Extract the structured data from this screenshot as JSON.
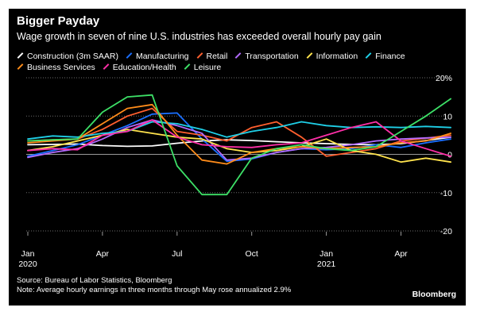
{
  "title": "Bigger Payday",
  "subtitle": "Wage growth in seven of nine U.S. industries has exceeded overall hourly pay gain",
  "source": "Source: Bureau of Labor Statistics, Bloomberg",
  "note": "Note: Average hourly earnings in three months through May rose annualized 2.9%",
  "brand": "Bloomberg",
  "chart_data": {
    "type": "line",
    "x": [
      "2020-01",
      "2020-02",
      "2020-03",
      "2020-04",
      "2020-05",
      "2020-06",
      "2020-07",
      "2020-08",
      "2020-09",
      "2020-10",
      "2020-11",
      "2020-12",
      "2021-01",
      "2021-02",
      "2021-03",
      "2021-04",
      "2021-05",
      "2021-06"
    ],
    "x_tick_labels": [
      {
        "x": "2020-01",
        "label": "Jan",
        "sublabel": "2020"
      },
      {
        "x": "2020-04",
        "label": "Apr",
        "sublabel": ""
      },
      {
        "x": "2020-07",
        "label": "Jul",
        "sublabel": ""
      },
      {
        "x": "2020-10",
        "label": "Oct",
        "sublabel": ""
      },
      {
        "x": "2021-01",
        "label": "Jan",
        "sublabel": "2021"
      },
      {
        "x": "2021-04",
        "label": "Apr",
        "sublabel": ""
      }
    ],
    "y_ticks": [
      20,
      10,
      0,
      -10,
      -20
    ],
    "y_tick_labels": [
      "20%",
      "10",
      "0",
      "-10",
      "-20"
    ],
    "ylim": [
      -20,
      20
    ],
    "grid": true,
    "legend_position": "top",
    "series": [
      {
        "name": "Construction (3m SAAR)",
        "color": "#ffffff",
        "values": [
          2.5,
          2.6,
          2.7,
          2.3,
          2.1,
          2.2,
          2.9,
          3.5,
          3.8,
          3.6,
          3.3,
          3.0,
          2.8,
          2.6,
          2.5,
          2.8,
          3.6,
          4.5
        ]
      },
      {
        "name": "Manufacturing",
        "color": "#1a6fff",
        "values": [
          -0.5,
          1.0,
          2.5,
          5.0,
          7.5,
          10.5,
          10.8,
          4.0,
          -1.8,
          -1.2,
          0.5,
          1.5,
          1.2,
          1.5,
          2.5,
          1.8,
          3.0,
          4.0
        ]
      },
      {
        "name": "Retail",
        "color": "#ff5f2e",
        "values": [
          3.5,
          3.8,
          4.0,
          6.5,
          10.0,
          12.0,
          6.0,
          5.0,
          3.5,
          7.0,
          8.5,
          4.5,
          -0.5,
          0.5,
          1.5,
          3.5,
          4.2,
          5.0
        ]
      },
      {
        "name": "Transportation",
        "color": "#b36bff",
        "values": [
          -0.8,
          0.5,
          1.5,
          4.0,
          7.0,
          9.0,
          7.5,
          5.5,
          -1.5,
          -1.0,
          0.5,
          1.5,
          1.8,
          2.5,
          3.5,
          4.0,
          4.3,
          4.5
        ]
      },
      {
        "name": "Information",
        "color": "#ffe34d",
        "values": [
          1.0,
          2.0,
          3.5,
          5.0,
          6.5,
          5.5,
          4.5,
          4.0,
          1.5,
          0.5,
          1.0,
          2.0,
          4.0,
          1.0,
          0.0,
          -2.0,
          -1.0,
          -2.0
        ]
      },
      {
        "name": "Finance",
        "color": "#1fd0e8",
        "values": [
          4.0,
          4.8,
          4.5,
          5.5,
          6.0,
          8.5,
          8.0,
          6.5,
          4.5,
          6.0,
          7.0,
          8.5,
          7.5,
          7.0,
          7.2,
          7.0,
          7.3,
          7.0
        ]
      },
      {
        "name": "Business Services",
        "color": "#ff8c1a",
        "values": [
          3.0,
          3.5,
          4.0,
          8.0,
          12.0,
          13.0,
          5.0,
          -1.5,
          -2.5,
          0.5,
          1.5,
          2.0,
          1.5,
          1.8,
          2.0,
          3.0,
          3.5,
          5.5
        ]
      },
      {
        "name": "Education/Health",
        "color": "#ff2fa8",
        "values": [
          1.0,
          1.5,
          1.2,
          5.0,
          6.0,
          9.0,
          4.5,
          2.5,
          2.0,
          1.8,
          2.5,
          3.0,
          5.0,
          7.0,
          8.5,
          3.5,
          1.5,
          -0.5
        ]
      },
      {
        "name": "Leisure",
        "color": "#3de067",
        "values": [
          3.5,
          3.8,
          4.0,
          11.0,
          15.0,
          15.5,
          -3.0,
          -10.5,
          -10.5,
          -1.0,
          1.5,
          2.5,
          1.5,
          1.0,
          2.0,
          6.0,
          10.0,
          14.5
        ]
      }
    ]
  }
}
